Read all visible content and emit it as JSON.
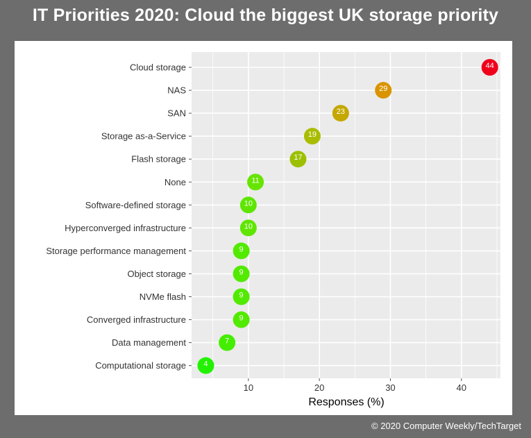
{
  "title": "IT Priorities 2020: Cloud the biggest UK storage priority",
  "credit": "© 2020 Computer Weekly/TechTarget",
  "chart_data": {
    "type": "scatter",
    "title": "",
    "xlabel": "Responses (%)",
    "ylabel": "",
    "xlim": [
      2,
      45.5
    ],
    "xticks": [
      10,
      20,
      30,
      40
    ],
    "grid": true,
    "categories": [
      "Cloud storage",
      "NAS",
      "SAN",
      "Storage as-a-Service",
      "Flash storage",
      "None",
      "Software-defined storage",
      "Hyperconverged infrastructure",
      "Storage performance management",
      "Object storage",
      "NVMe flash",
      "Converged infrastructure",
      "Data management",
      "Computational storage"
    ],
    "values": [
      44,
      29,
      23,
      19,
      17,
      11,
      10,
      10,
      9,
      9,
      9,
      9,
      7,
      4
    ],
    "colors": [
      "#f0001a",
      "#d99400",
      "#c4a800",
      "#a9bd00",
      "#9cc000",
      "#66e500",
      "#5ee600",
      "#5ee600",
      "#52ea00",
      "#52ea00",
      "#52ea00",
      "#52ea00",
      "#44ee00",
      "#22f200"
    ]
  }
}
